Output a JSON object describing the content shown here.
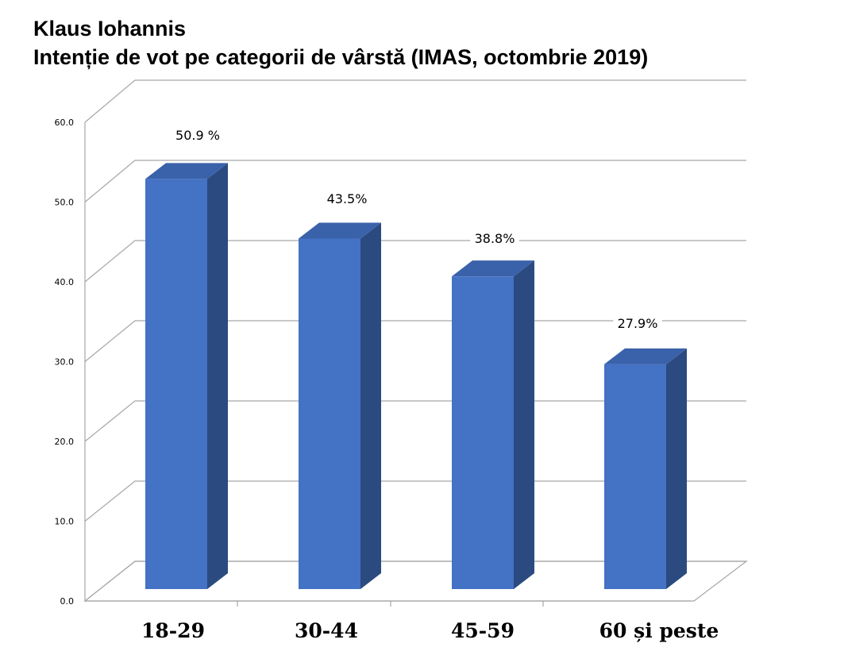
{
  "chart_data": {
    "type": "bar",
    "title": "Klaus Iohannis",
    "subtitle": "Intenție de vot pe categorii de vârstă (IMAS, octombrie 2019)",
    "categories": [
      "18-29",
      "30-44",
      "45-59",
      "60 și peste"
    ],
    "values": [
      50.9,
      43.5,
      38.8,
      27.9
    ],
    "data_labels": [
      "50.9 %",
      "43.5%",
      "38.8%",
      "27.9%"
    ],
    "ylim": [
      0,
      60
    ],
    "yticks": [
      "0.0",
      "10.0",
      "20.0",
      "30.0",
      "40.0",
      "50.0",
      "60.0"
    ],
    "xlabel": "",
    "ylabel": "",
    "grid": true,
    "style": "3d",
    "colors": {
      "bar_front": "#4472C4",
      "bar_side": "#2B4A80",
      "bar_top": "#3A62AA",
      "grid": "#A6A6A6"
    }
  }
}
